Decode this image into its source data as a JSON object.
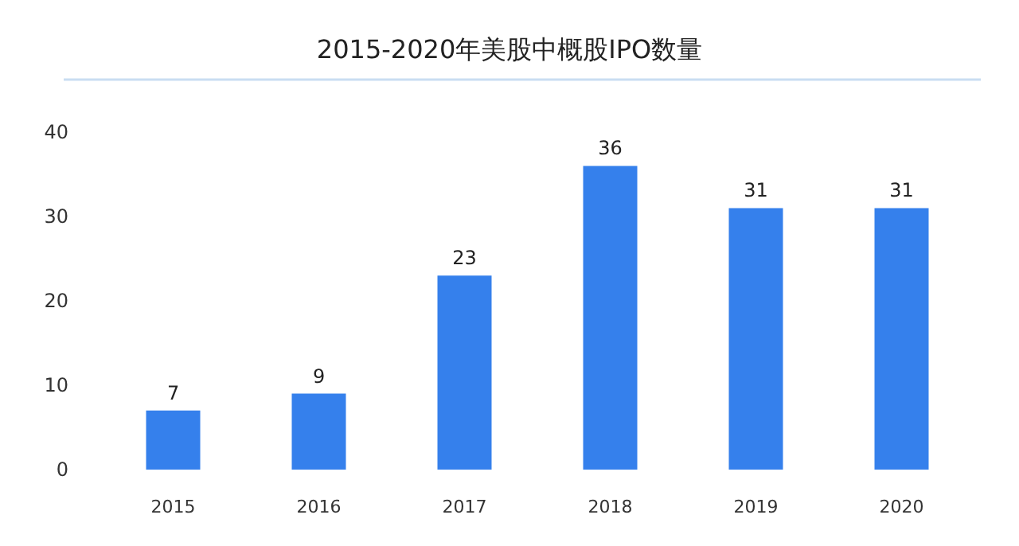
{
  "chart_data": {
    "type": "bar",
    "title": "2015-2020年美股中概股IPO数量",
    "categories": [
      "2015",
      "2016",
      "2017",
      "2018",
      "2019",
      "2020"
    ],
    "values": [
      7,
      9,
      23,
      36,
      31,
      31
    ],
    "color": "#3580ec",
    "ylim": [
      0,
      40
    ],
    "yticks": [
      0,
      10,
      20,
      30,
      40
    ],
    "grid": false,
    "data_labels": true
  }
}
